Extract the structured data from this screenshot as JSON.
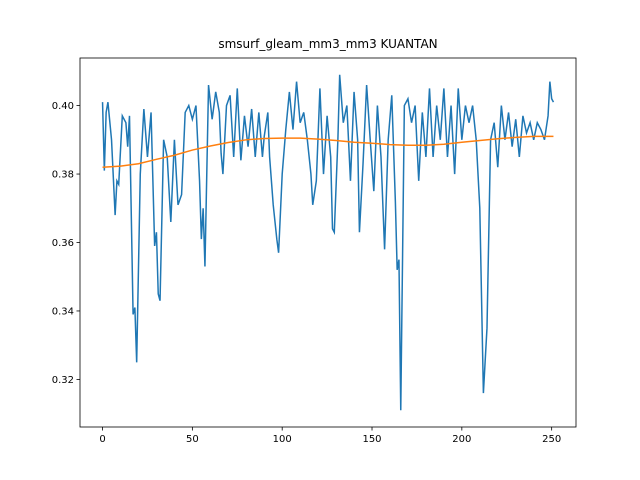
{
  "chart_data": {
    "type": "line",
    "title": "smsurf_gleam_mm3_mm3 KUANTAN",
    "xlim": [
      -12.55,
      263.55
    ],
    "xticks": [
      0,
      50,
      100,
      150,
      200,
      250
    ],
    "ylim": [
      0.3061,
      0.4139
    ],
    "yticks": [
      {
        "value": 0.32,
        "label": "0.32"
      },
      {
        "value": 0.34,
        "label": "0.34"
      },
      {
        "value": 0.36,
        "label": "0.36"
      },
      {
        "value": 0.38,
        "label": "0.38"
      },
      {
        "value": 0.4,
        "label": "0.40"
      }
    ],
    "series": [
      {
        "color": "#1f77b4",
        "x": [
          0,
          1,
          2,
          3,
          5,
          7,
          8,
          9,
          11,
          13,
          14,
          15,
          17,
          18,
          19,
          21,
          23,
          25,
          27,
          29,
          30,
          31,
          32,
          34,
          36,
          38,
          40,
          42,
          44,
          46,
          48,
          50,
          52,
          54,
          55,
          56,
          57,
          59,
          61,
          63,
          65,
          66,
          67,
          69,
          71,
          73,
          75,
          77,
          79,
          81,
          83,
          85,
          87,
          89,
          90,
          92,
          93,
          95,
          97,
          98,
          100,
          102,
          104,
          106,
          108,
          110,
          112,
          114,
          116,
          117,
          119,
          121,
          123,
          125,
          127,
          128,
          129,
          131,
          132,
          134,
          136,
          138,
          140,
          142,
          143,
          145,
          147,
          149,
          151,
          153,
          155,
          157,
          159,
          161,
          163,
          164,
          165,
          166,
          168,
          170,
          172,
          174,
          176,
          178,
          180,
          182,
          184,
          186,
          188,
          190,
          192,
          194,
          196,
          198,
          200,
          202,
          204,
          206,
          208,
          210,
          212,
          214,
          216,
          218,
          220,
          222,
          224,
          226,
          228,
          230,
          232,
          234,
          236,
          238,
          240,
          242,
          244,
          246,
          248,
          249,
          250,
          251
        ],
        "values": [
          0.401,
          0.381,
          0.398,
          0.401,
          0.39,
          0.368,
          0.378,
          0.377,
          0.397,
          0.395,
          0.388,
          0.397,
          0.339,
          0.341,
          0.325,
          0.38,
          0.399,
          0.385,
          0.398,
          0.359,
          0.363,
          0.345,
          0.343,
          0.39,
          0.385,
          0.366,
          0.39,
          0.371,
          0.374,
          0.398,
          0.4,
          0.396,
          0.4,
          0.378,
          0.361,
          0.37,
          0.353,
          0.406,
          0.396,
          0.404,
          0.398,
          0.386,
          0.38,
          0.4,
          0.403,
          0.385,
          0.405,
          0.384,
          0.397,
          0.388,
          0.399,
          0.385,
          0.398,
          0.385,
          0.391,
          0.398,
          0.385,
          0.371,
          0.361,
          0.357,
          0.38,
          0.393,
          0.404,
          0.393,
          0.407,
          0.395,
          0.398,
          0.39,
          0.38,
          0.371,
          0.378,
          0.405,
          0.38,
          0.397,
          0.385,
          0.364,
          0.363,
          0.39,
          0.409,
          0.395,
          0.4,
          0.378,
          0.404,
          0.39,
          0.363,
          0.383,
          0.406,
          0.39,
          0.375,
          0.4,
          0.385,
          0.358,
          0.39,
          0.403,
          0.372,
          0.352,
          0.355,
          0.311,
          0.4,
          0.402,
          0.395,
          0.4,
          0.378,
          0.398,
          0.385,
          0.405,
          0.385,
          0.4,
          0.39,
          0.405,
          0.385,
          0.4,
          0.38,
          0.405,
          0.39,
          0.4,
          0.395,
          0.4,
          0.39,
          0.37,
          0.316,
          0.335,
          0.39,
          0.395,
          0.382,
          0.4,
          0.39,
          0.398,
          0.388,
          0.396,
          0.385,
          0.397,
          0.392,
          0.395,
          0.39,
          0.395,
          0.393,
          0.39,
          0.397,
          0.407,
          0.402,
          0.401
        ]
      },
      {
        "color": "#ff7f0e",
        "x": [
          0,
          10,
          20,
          30,
          40,
          50,
          60,
          70,
          80,
          90,
          100,
          110,
          120,
          130,
          140,
          150,
          160,
          170,
          180,
          190,
          200,
          210,
          220,
          230,
          240,
          251
        ],
        "values": [
          0.382,
          0.3823,
          0.383,
          0.3843,
          0.3855,
          0.387,
          0.3882,
          0.3892,
          0.39,
          0.3904,
          0.3905,
          0.3905,
          0.3902,
          0.3898,
          0.3893,
          0.389,
          0.3886,
          0.3884,
          0.3884,
          0.3887,
          0.3893,
          0.3898,
          0.3903,
          0.3907,
          0.391,
          0.391
        ]
      }
    ]
  }
}
